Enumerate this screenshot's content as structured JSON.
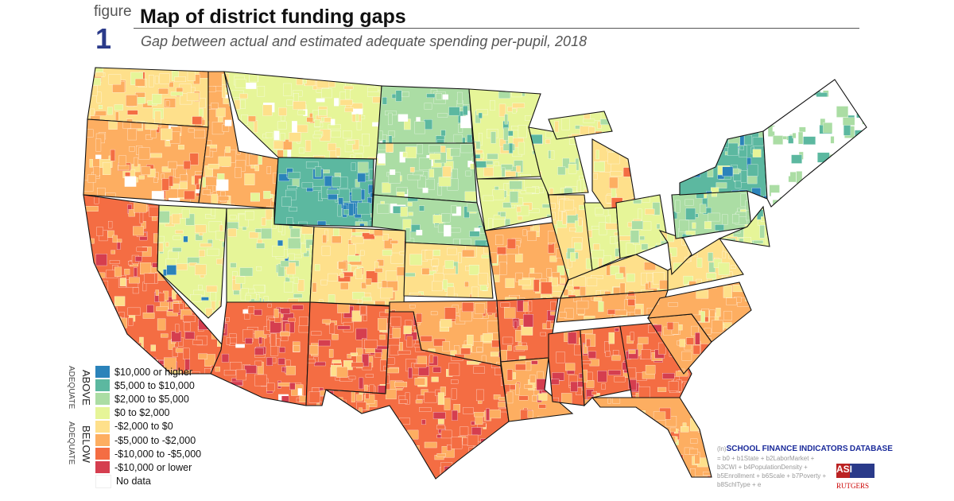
{
  "header": {
    "figure_label": "figure",
    "figure_number": "1",
    "title": "Map of district funding gaps",
    "subtitle": "Gap between actual and estimated adequate spending per-pupil, 2018"
  },
  "legend": {
    "above_label": "ABOVE",
    "above_sub": "ADEQUATE",
    "below_label": "BELOW",
    "below_sub": "ADEQUATE",
    "items": [
      {
        "label": "$10,000 or higher",
        "color": "#2b83ba"
      },
      {
        "label": "$5,000 to $10,000",
        "color": "#5cb8a0"
      },
      {
        "label": "$2,000 to $5,000",
        "color": "#abdda4"
      },
      {
        "label": "$0 to $2,000",
        "color": "#e6f598"
      },
      {
        "label": "-$2,000 to $0",
        "color": "#fee08b"
      },
      {
        "label": "-$5,000 to -$2,000",
        "color": "#fdae61"
      },
      {
        "label": "-$10,000 to -$5,000",
        "color": "#f46d43"
      },
      {
        "label": "-$10,000 or lower",
        "color": "#d53e4f"
      },
      {
        "label": "No data",
        "color": "#ffffff"
      }
    ]
  },
  "footer": {
    "sfid_prefix": "(ln)",
    "sfid_words": [
      "SCHOOL",
      "FINANCE",
      "INDICATORS",
      "DATABASE"
    ],
    "sfid_formula": "= b0 + b1State + b2LaborMarket + b3CWI + b4PopulationDensity + b5Enrollment + b6Scale + b7Poverty + b8SchlType + e",
    "logo_asi": "ASI",
    "logo_rutgers": "RUTGERS"
  }
}
